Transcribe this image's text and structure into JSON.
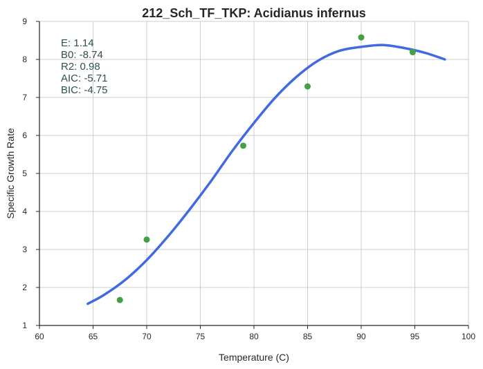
{
  "chart_data": {
    "type": "scatter",
    "title": "212_Sch_TF_TKP: Acidianus infernus",
    "xlabel": "Temperature (C)",
    "ylabel": "Specific Growth Rate",
    "xlim": [
      60,
      100
    ],
    "ylim": [
      1,
      9
    ],
    "xticks": [
      60,
      65,
      70,
      75,
      80,
      85,
      90,
      95,
      100
    ],
    "yticks": [
      1,
      2,
      3,
      4,
      5,
      6,
      7,
      8,
      9
    ],
    "grid": true,
    "points": {
      "color": "#43a047",
      "x": [
        67.5,
        70.0,
        79.0,
        85.0,
        90.0,
        94.8
      ],
      "y": [
        1.67,
        3.26,
        5.73,
        7.29,
        8.58,
        8.19
      ]
    },
    "fit": {
      "color": "#4169e1",
      "x": [
        64.5,
        66,
        68,
        70,
        72,
        74,
        76,
        78,
        80,
        82,
        84,
        86,
        88,
        90,
        92,
        94,
        96,
        97.8
      ],
      "y": [
        1.57,
        1.8,
        2.2,
        2.72,
        3.35,
        4.05,
        4.8,
        5.6,
        6.33,
        7.0,
        7.55,
        7.97,
        8.23,
        8.33,
        8.38,
        8.3,
        8.17,
        8.0
      ]
    },
    "annotations": [
      "E:  1.14",
      "B0:  -8.74",
      "R2:  0.98",
      "AIC: -5.71",
      "BIC: -4.75"
    ]
  }
}
